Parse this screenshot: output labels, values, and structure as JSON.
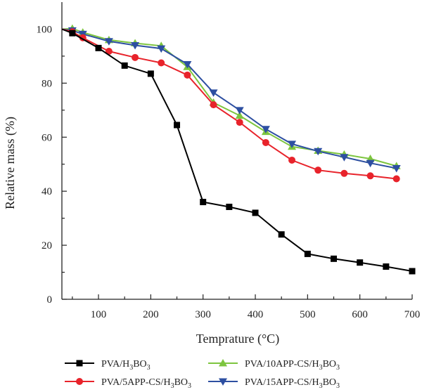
{
  "chart_data": {
    "type": "line",
    "title": "",
    "xlabel": "Temprature (°C)",
    "ylabel": "Relative mass (%)",
    "xlim": [
      30,
      700
    ],
    "ylim": [
      0,
      110
    ],
    "xticks": [
      100,
      200,
      300,
      400,
      500,
      600,
      700
    ],
    "yticks": [
      0,
      20,
      40,
      60,
      80,
      100
    ],
    "grid": false,
    "legend_position": "bottom",
    "series": [
      {
        "name": "PVA/H3BO3",
        "name_base": "PVA/H",
        "name_sub1": "3",
        "name_mid": "BO",
        "name_sub2": "3",
        "color": "#000000",
        "marker": "square",
        "x": [
          30,
          50,
          100,
          150,
          200,
          250,
          300,
          350,
          400,
          450,
          500,
          550,
          600,
          650,
          700
        ],
        "y": [
          100,
          98.5,
          93,
          86.5,
          83.5,
          64.5,
          36,
          34.2,
          32,
          24,
          16.8,
          15,
          13.6,
          12.1,
          10.4
        ]
      },
      {
        "name": "PVA/5APP-CS/H3BO3",
        "name_base": "PVA/5APP-CS/H",
        "name_sub1": "3",
        "name_mid": "BO",
        "name_sub2": "3",
        "color": "#e8232b",
        "marker": "circle",
        "x": [
          30,
          50,
          70,
          120,
          170,
          220,
          270,
          320,
          370,
          420,
          470,
          520,
          570,
          620,
          670
        ],
        "y": [
          100,
          99,
          96.8,
          91.8,
          89.5,
          87.5,
          83,
          72,
          65.5,
          58,
          51.5,
          47.8,
          46.6,
          45.7,
          44.6
        ]
      },
      {
        "name": "PVA/10APP-CS/H3BO3",
        "name_base": "PVA/10APP-CS/H",
        "name_sub1": "3",
        "name_mid": "BO",
        "name_sub2": "3",
        "color": "#7dc53f",
        "marker": "triangle-up",
        "x": [
          30,
          50,
          70,
          120,
          170,
          220,
          270,
          320,
          370,
          420,
          470,
          520,
          570,
          620,
          670
        ],
        "y": [
          100,
          100.2,
          98.8,
          96,
          94.8,
          93.8,
          86,
          72.8,
          68,
          62,
          56.5,
          55,
          53.6,
          52,
          49.3
        ]
      },
      {
        "name": "PVA/15APP-CS/H3BO3",
        "name_base": "PVA/15APP-CS/H",
        "name_sub1": "3",
        "name_mid": "BO",
        "name_sub2": "3",
        "color": "#2d4fa1",
        "marker": "triangle-down",
        "x": [
          30,
          50,
          70,
          120,
          170,
          220,
          270,
          320,
          370,
          420,
          470,
          520,
          570,
          620,
          670
        ],
        "y": [
          100,
          99.5,
          98.2,
          95.5,
          94,
          92.8,
          87,
          76.5,
          70,
          63,
          57.5,
          54.8,
          52.6,
          50.4,
          48.5
        ]
      }
    ]
  }
}
